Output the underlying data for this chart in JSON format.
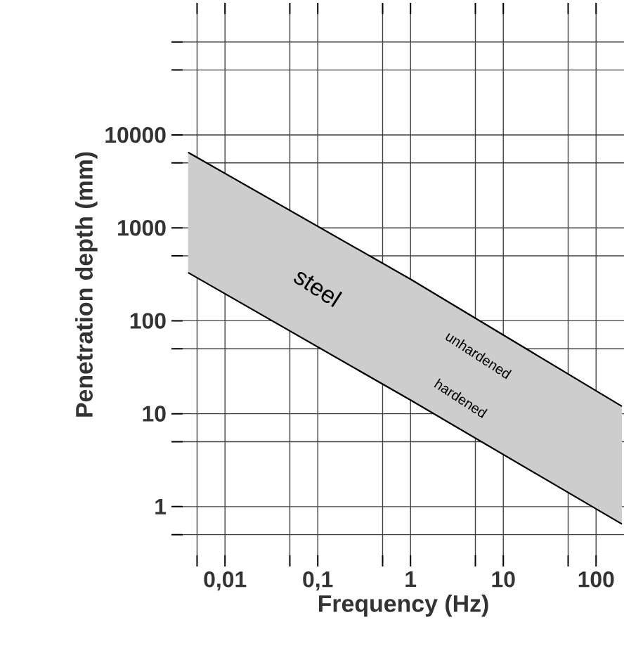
{
  "chart_data": {
    "type": "line",
    "xlabel": "Frequency (Hz)",
    "ylabel": "Penetration depth (mm)",
    "log": "xy",
    "grid": true,
    "xlim": [
      0.0035,
      200
    ],
    "ylim": [
      0.3,
      200000
    ],
    "xticks": [
      {
        "value": 0.005,
        "label": null
      },
      {
        "value": 0.01,
        "label": "0,01"
      },
      {
        "value": 0.05,
        "label": null
      },
      {
        "value": 0.1,
        "label": "0,1"
      },
      {
        "value": 0.5,
        "label": null
      },
      1,
      {
        "value": 5,
        "label": null
      },
      10,
      {
        "value": 50,
        "label": null
      },
      100
    ],
    "yticks": [
      {
        "value": 0.5,
        "label": null
      },
      1,
      {
        "value": 5,
        "label": null
      },
      10,
      {
        "value": 50,
        "label": null
      },
      100,
      {
        "value": 500,
        "label": null
      },
      1000,
      {
        "value": 5000,
        "label": null
      },
      10000,
      {
        "value": 50000,
        "label": null
      },
      {
        "value": 100000,
        "label": null
      }
    ],
    "series": [
      {
        "color": "#000000",
        "x": [
          0.004,
          1,
          190
        ],
        "values": [
          6500,
          280,
          12
        ],
        "lower": [
          330,
          14,
          0.65
        ],
        "upper": [
          6500,
          280,
          12
        ]
      },
      {
        "color": "#000000",
        "x": [
          0.004,
          1,
          190
        ],
        "values": [
          330,
          14,
          0.65
        ]
      }
    ],
    "annotations": [
      {
        "text": "steel",
        "x": 0.1,
        "y": 230
      },
      "unhardened",
      "hardened"
    ]
  }
}
